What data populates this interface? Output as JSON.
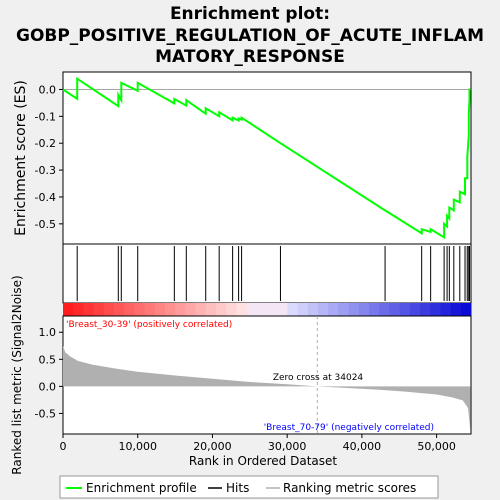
{
  "title_lines": [
    "Enrichment plot:",
    "GOBP_POSITIVE_REGULATION_OF_ACUTE_INFLAM",
    "MATORY_RESPONSE"
  ],
  "colors": {
    "enrichment_line": "#00ff00",
    "hits": "#000000",
    "metric_fill": "#b0b0b0",
    "pos_label": "#ff0000",
    "neg_label": "#0000ff"
  },
  "chart_data": [
    {
      "type": "line",
      "ylabel": "Enrichment score (ES)",
      "xlim": [
        0,
        54600
      ],
      "ylim": [
        -0.575,
        0.065
      ],
      "yticks": [
        0.0,
        -0.1,
        -0.2,
        -0.3,
        -0.4,
        -0.5
      ],
      "ytick_labels": [
        "0.0",
        "-0.1",
        "-0.2",
        "-0.3",
        "-0.4",
        "-0.5"
      ],
      "grid": false,
      "series": [
        {
          "name": "Enrichment profile",
          "x": [
            0,
            1900,
            1900,
            7400,
            7400,
            7800,
            7800,
            10000,
            10000,
            14900,
            14900,
            16500,
            16500,
            19100,
            19100,
            20900,
            20900,
            22700,
            22700,
            23500,
            23500,
            23900,
            23900,
            29100,
            29100,
            43100,
            43100,
            48000,
            48000,
            49200,
            49200,
            51000,
            51000,
            51400,
            51400,
            51700,
            51700,
            52300,
            52300,
            53100,
            53100,
            53800,
            53800,
            54100,
            54100,
            54300,
            54300,
            54400,
            54400,
            54500
          ],
          "y": [
            0.0,
            -0.035,
            0.04,
            -0.062,
            -0.02,
            -0.04,
            0.025,
            -0.005,
            0.025,
            -0.052,
            -0.035,
            -0.06,
            -0.04,
            -0.09,
            -0.07,
            -0.1,
            -0.085,
            -0.115,
            -0.105,
            -0.115,
            -0.108,
            -0.112,
            -0.105,
            -0.2,
            -0.2,
            -0.45,
            -0.45,
            -0.535,
            -0.52,
            -0.53,
            -0.52,
            -0.55,
            -0.5,
            -0.51,
            -0.47,
            -0.48,
            -0.44,
            -0.45,
            -0.41,
            -0.42,
            -0.38,
            -0.39,
            -0.33,
            -0.33,
            -0.25,
            -0.17,
            -0.09,
            -0.04,
            0.0,
            0.0
          ]
        }
      ]
    },
    {
      "type": "scatter",
      "name": "Hits",
      "x": [
        1900,
        7400,
        7800,
        10000,
        14900,
        16500,
        19100,
        20900,
        22700,
        23500,
        23900,
        29100,
        43100,
        48000,
        49200,
        51000,
        51400,
        51700,
        52300,
        53100,
        53800,
        54100,
        54300,
        54400
      ]
    },
    {
      "type": "area",
      "ylabel": "Ranked list metric (Signal2Noise)",
      "xlabel": "Rank in Ordered Dataset",
      "xlim": [
        0,
        54600
      ],
      "ylim": [
        -0.88,
        1.3
      ],
      "yticks": [
        -0.5,
        0.0,
        0.5,
        1.0
      ],
      "ytick_labels": [
        "-0.5",
        "0.0",
        "0.5",
        "1.0"
      ],
      "xticks": [
        0,
        10000,
        20000,
        30000,
        40000,
        50000
      ],
      "xtick_labels": [
        "0",
        "10,000",
        "20,000",
        "30,000",
        "40,000",
        "50,000"
      ],
      "zero_cross": 34024,
      "annotations": [
        "Zero cross at 34024",
        "'Breast_30-39' (positively correlated)",
        "'Breast_70-79' (negatively correlated)"
      ],
      "series": [
        {
          "name": "Ranking metric scores",
          "x": [
            0,
            300,
            1000,
            2000,
            4000,
            7000,
            10000,
            15000,
            20000,
            25000,
            30000,
            34024,
            38000,
            42000,
            46000,
            50000,
            52000,
            53500,
            54200,
            54500
          ],
          "y": [
            0.75,
            0.63,
            0.55,
            0.47,
            0.4,
            0.33,
            0.27,
            0.2,
            0.14,
            0.08,
            0.04,
            0.0,
            -0.03,
            -0.06,
            -0.1,
            -0.15,
            -0.2,
            -0.26,
            -0.4,
            -0.8
          ]
        }
      ]
    }
  ],
  "legend": {
    "items": [
      {
        "label": "Enrichment profile",
        "swatch": "line-green"
      },
      {
        "label": "Hits",
        "swatch": "line-black"
      },
      {
        "label": "Ranking metric scores",
        "swatch": "line-gray"
      }
    ]
  }
}
